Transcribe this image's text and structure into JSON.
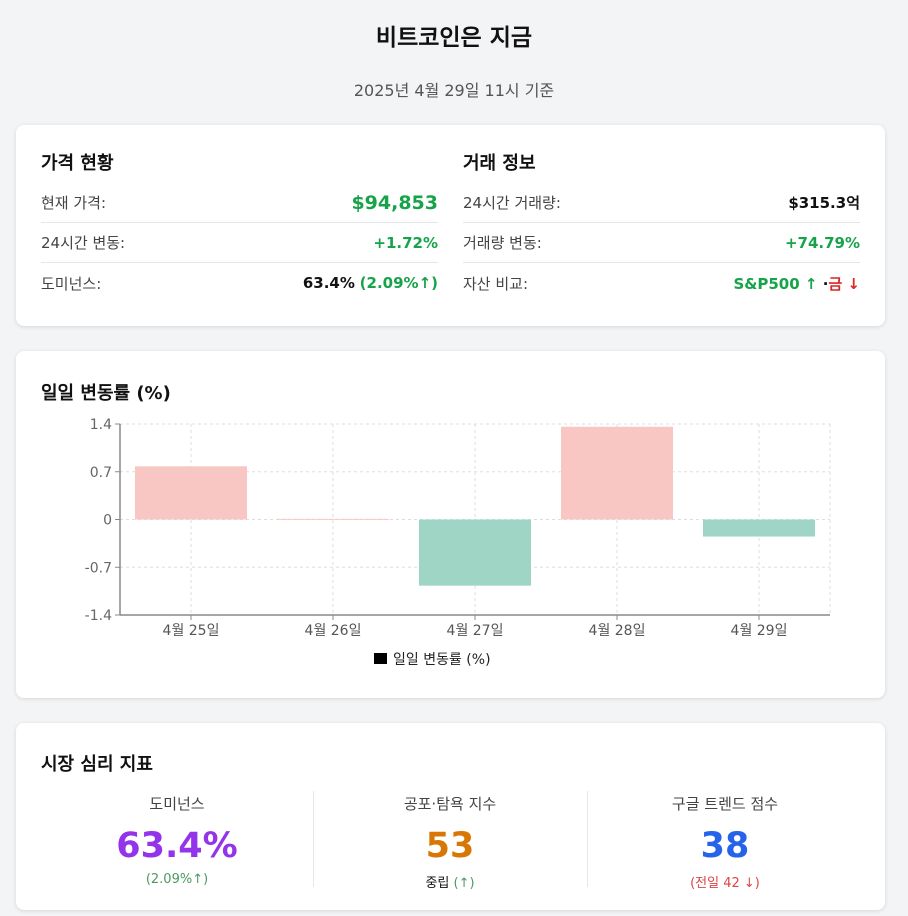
{
  "header": {
    "title": "비트코인은 지금",
    "subtitle": "2025년 4월 29일 11시 기준"
  },
  "price": {
    "heading": "가격 현황",
    "rows": [
      {
        "label": "현재 가격:",
        "value": "$94,853"
      },
      {
        "label": "24시간 변동:",
        "value": "+1.72%"
      },
      {
        "label": "도미넌스:",
        "value": "63.4%",
        "extra": "(2.09%↑)"
      }
    ]
  },
  "trade": {
    "heading": "거래 정보",
    "rows": [
      {
        "label": "24시간 거래량:",
        "value": "$315.3억"
      },
      {
        "label": "거래량 변동:",
        "value": "+74.79%"
      },
      {
        "label": "자산 비교:",
        "value_up": "S&P500 ↑",
        "sep": "·",
        "value_down": "금 ↓"
      }
    ]
  },
  "chart_section": {
    "heading": "일일 변동률 (%)"
  },
  "chart_data": {
    "type": "bar",
    "title": "일일 변동률 (%)",
    "categories": [
      "4월 25일",
      "4월 26일",
      "4월 27일",
      "4월 28일",
      "4월 29일"
    ],
    "values": [
      0.78,
      0.01,
      -0.97,
      1.36,
      -0.25
    ],
    "yticks": [
      "1.4",
      "0.7",
      "0",
      "-0.7",
      "-1.4"
    ],
    "ylim": [
      -1.4,
      1.4
    ],
    "legend": "일일 변동률 (%)",
    "legend_position": "bottom-center",
    "grid": true,
    "colors": {
      "positive": "#f8c7c3",
      "negative": "#9fd5c4"
    }
  },
  "sentiment": {
    "heading": "시장 심리 지표",
    "metrics": [
      {
        "label": "도미넌스",
        "value": "63.4%",
        "sub": "(2.09%↑)",
        "color": "#9333ea"
      },
      {
        "label": "공포·탐욕 지수",
        "value": "53",
        "sub_main": "중립",
        "sub": "(↑)",
        "color": "#d97706"
      },
      {
        "label": "구글 트렌드 점수",
        "value": "38",
        "sub": "(전일 42 ↓)",
        "color": "#2563eb"
      }
    ]
  }
}
